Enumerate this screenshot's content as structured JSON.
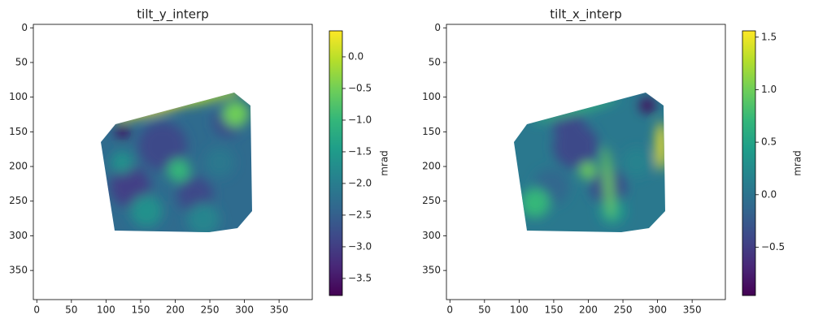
{
  "chart_data": [
    {
      "type": "heatmap",
      "title": "tilt_y_interp",
      "cmap": "viridis",
      "xlim": [
        -5,
        398
      ],
      "ylim": [
        392,
        -5
      ],
      "xticks": [
        0,
        50,
        100,
        150,
        200,
        250,
        300,
        350
      ],
      "yticks": [
        0,
        50,
        100,
        150,
        200,
        250,
        300,
        350
      ],
      "colorbar": {
        "label": "mrad",
        "lim": [
          -3.77,
          0.41
        ],
        "ticks": [
          {
            "value": 0,
            "label": "0.0"
          },
          {
            "value": -0.5,
            "label": "−0.5"
          },
          {
            "value": -1,
            "label": "−1.0"
          },
          {
            "value": -1.5,
            "label": "−1.5"
          },
          {
            "value": -2,
            "label": "−2.0"
          },
          {
            "value": -2.5,
            "label": "−2.5"
          },
          {
            "value": -3,
            "label": "−3.0"
          },
          {
            "value": -3.5,
            "label": "−3.5"
          }
        ]
      }
    },
    {
      "type": "heatmap",
      "title": "tilt_x_interp",
      "cmap": "viridis",
      "xlim": [
        -5,
        398
      ],
      "ylim": [
        392,
        -5
      ],
      "xticks": [
        0,
        50,
        100,
        150,
        200,
        250,
        300,
        350
      ],
      "yticks": [
        0,
        50,
        100,
        150,
        200,
        250,
        300,
        350
      ],
      "colorbar": {
        "label": "mrad",
        "lim": [
          -0.96,
          1.56
        ],
        "ticks": [
          {
            "value": -0.5,
            "label": "−0.5"
          },
          {
            "value": 0,
            "label": "0.0"
          },
          {
            "value": 0.5,
            "label": "0.5"
          },
          {
            "value": 1,
            "label": "1.0"
          },
          {
            "value": 1.5,
            "label": "1.5"
          }
        ]
      }
    }
  ]
}
